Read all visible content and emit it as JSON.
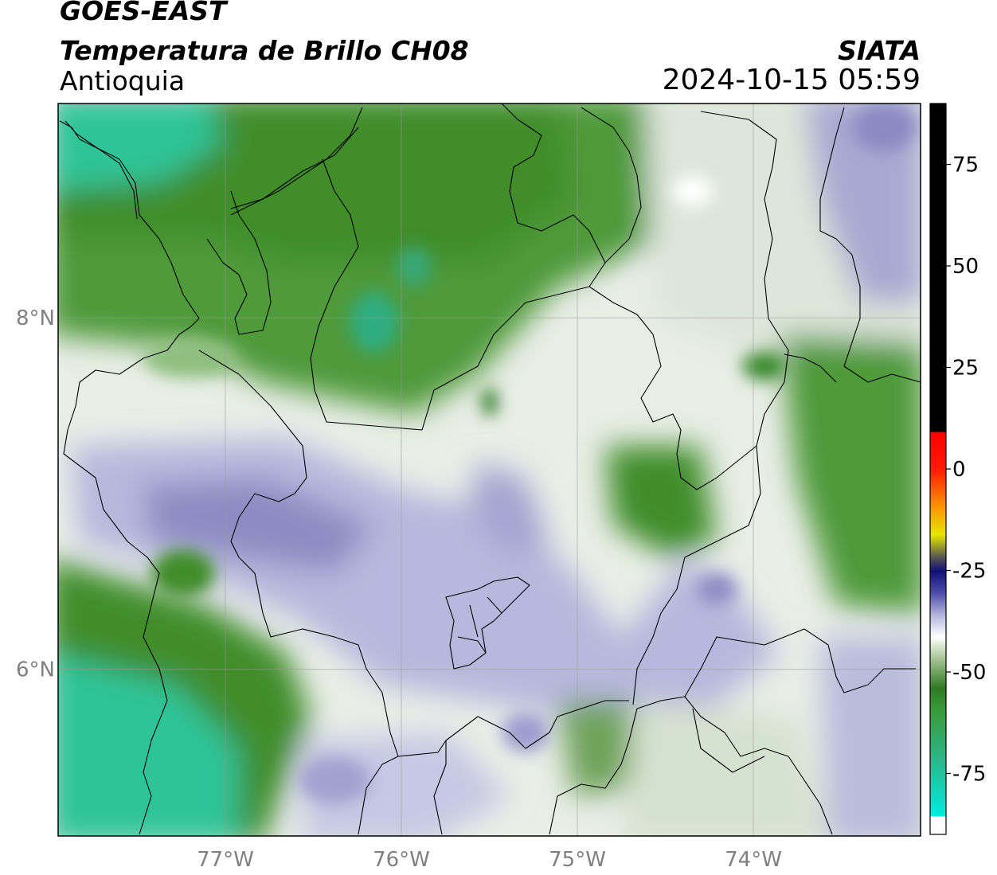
{
  "header": {
    "satellite": "GOES-EAST",
    "product": "Temperatura de Brillo CH08",
    "region": "Antioquia",
    "source": "SIATA",
    "datetime": "2024-10-15 05:59"
  },
  "map": {
    "lon_range": [
      -77.95,
      -73.05
    ],
    "lat_range": [
      5.05,
      9.22
    ],
    "lon_ticks": [
      {
        "value": -77,
        "label": "77°W"
      },
      {
        "value": -76,
        "label": "76°W"
      },
      {
        "value": -75,
        "label": "75°W"
      },
      {
        "value": -74,
        "label": "74°W"
      }
    ],
    "lat_ticks": [
      {
        "value": 8,
        "label": "8°N"
      },
      {
        "value": 6,
        "label": "6°N"
      }
    ],
    "gridlines": true,
    "field_colors": {
      "cyan_teal": "#2ec497",
      "dark_green": "#3f8d2c",
      "mid_green": "#74a862",
      "light_green": "#c8dcc0",
      "white": "#f6f7f6",
      "lavender": "#a8a8d2",
      "purple": "#7a7ab8"
    }
  },
  "colorbar": {
    "ticks": [
      {
        "value": 75,
        "label": "75"
      },
      {
        "value": 50,
        "label": "50"
      },
      {
        "value": 25,
        "label": "25"
      },
      {
        "value": 0,
        "label": "0"
      },
      {
        "value": -25,
        "label": "-25"
      },
      {
        "value": -50,
        "label": "-50"
      },
      {
        "value": -75,
        "label": "-75"
      }
    ]
  }
}
